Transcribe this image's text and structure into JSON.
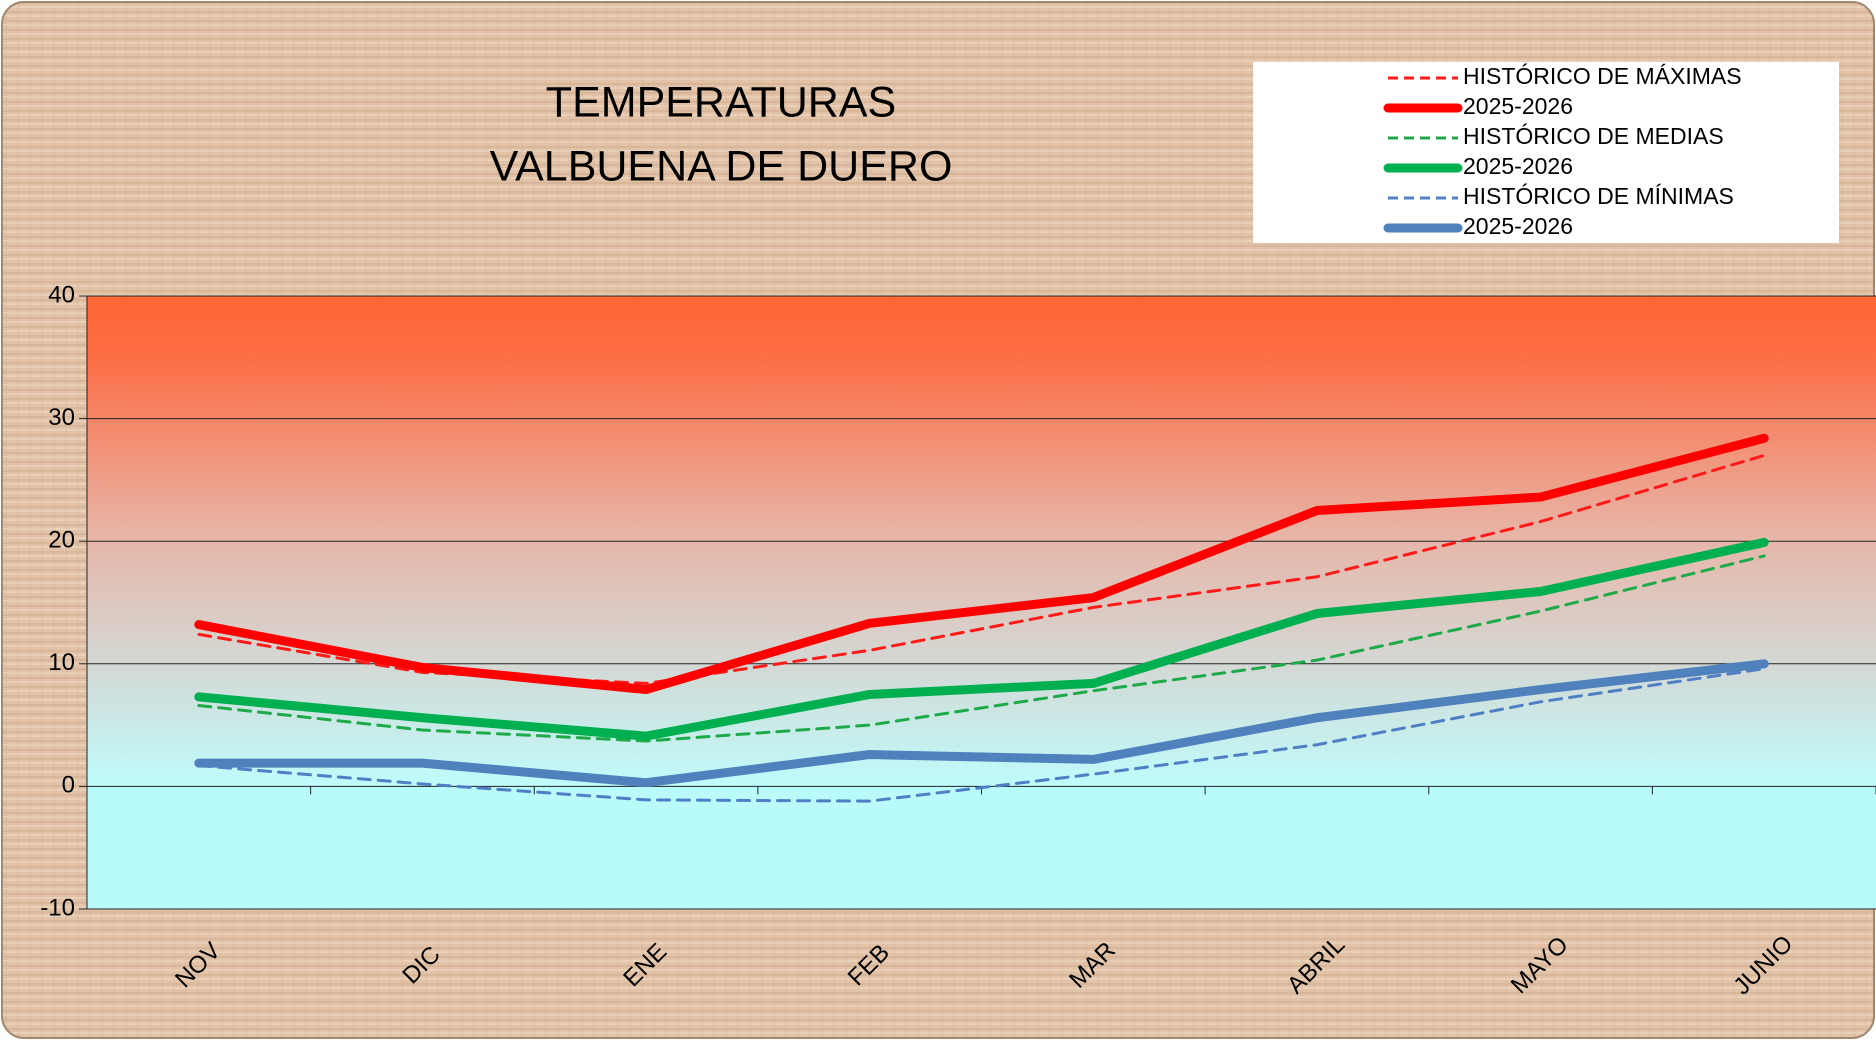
{
  "chart_data": {
    "type": "line",
    "title": [
      "TEMPERATURAS",
      "VALBUENA DE DUERO"
    ],
    "categories": [
      "NOV",
      "DIC",
      "ENE",
      "FEB",
      "MAR",
      "ABRIL",
      "MAYO",
      "JUNIO"
    ],
    "series": [
      {
        "name": "HISTÓRICO DE MÁXIMAS",
        "color": "#ff1a1a",
        "dashed": true,
        "values": [
          12.4,
          9.3,
          8.4,
          11.1,
          14.6,
          17.1,
          21.6,
          27.0
        ]
      },
      {
        "name": "2025-2026",
        "color": "#ff0000",
        "dashed": false,
        "values": [
          13.2,
          9.7,
          7.9,
          13.3,
          15.4,
          22.5,
          23.6,
          28.4
        ]
      },
      {
        "name": "HISTÓRICO DE MEDIAS",
        "color": "#1faa4a",
        "dashed": true,
        "values": [
          6.6,
          4.6,
          3.7,
          5.0,
          7.8,
          10.3,
          14.3,
          18.8
        ]
      },
      {
        "name": "2025-2026",
        "color": "#00b050",
        "dashed": false,
        "values": [
          7.3,
          5.6,
          4.1,
          7.5,
          8.4,
          14.1,
          15.9,
          19.9
        ]
      },
      {
        "name": "HISTÓRICO DE MÍNIMAS",
        "color": "#4f7fc4",
        "dashed": true,
        "values": [
          1.7,
          0.2,
          -1.1,
          -1.2,
          1.0,
          3.4,
          6.9,
          9.6
        ]
      },
      {
        "name": "2025-2026",
        "color": "#4f81bd",
        "dashed": false,
        "values": [
          1.9,
          1.9,
          0.3,
          2.6,
          2.2,
          5.6,
          7.9,
          10.0
        ]
      }
    ],
    "ylim": [
      -10,
      40
    ],
    "yticks": [
      -10,
      0,
      10,
      20,
      30,
      40
    ],
    "grid": true,
    "legend": "top-right"
  }
}
